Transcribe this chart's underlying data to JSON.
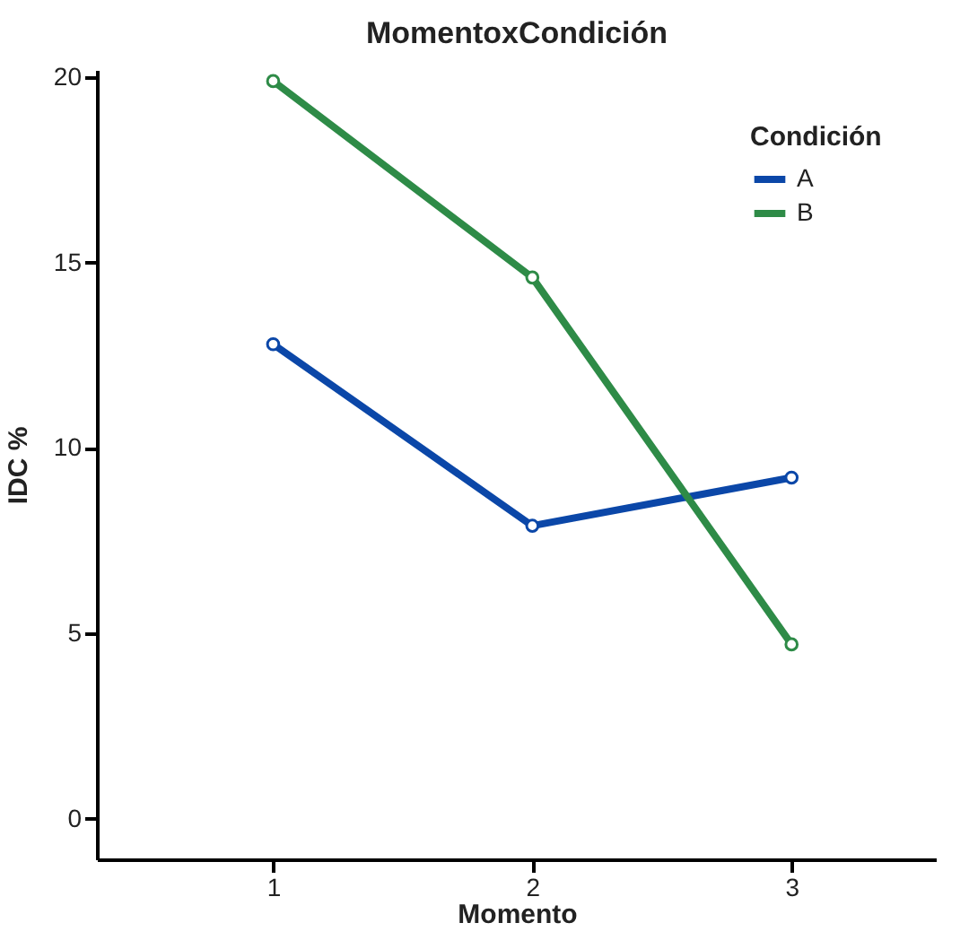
{
  "chart_data": {
    "type": "line",
    "title": "MomentoxCondición",
    "xlabel": "Momento",
    "ylabel": "IDC %",
    "legend_title": "Condición",
    "x": [
      1,
      2,
      3
    ],
    "series": [
      {
        "name": "A",
        "color": "#0b47a8",
        "values": [
          12.8,
          7.9,
          9.2
        ]
      },
      {
        "name": "B",
        "color": "#2e8b47",
        "values": [
          19.9,
          14.6,
          4.7
        ]
      }
    ],
    "xlim": [
      0.32,
      3.56
    ],
    "xticks": [
      1,
      2,
      3
    ],
    "ylim": [
      -1.1,
      20.2
    ],
    "yticks": [
      0,
      5,
      10,
      15,
      20
    ],
    "grid": false,
    "legend": "top right",
    "marker": "circle"
  }
}
